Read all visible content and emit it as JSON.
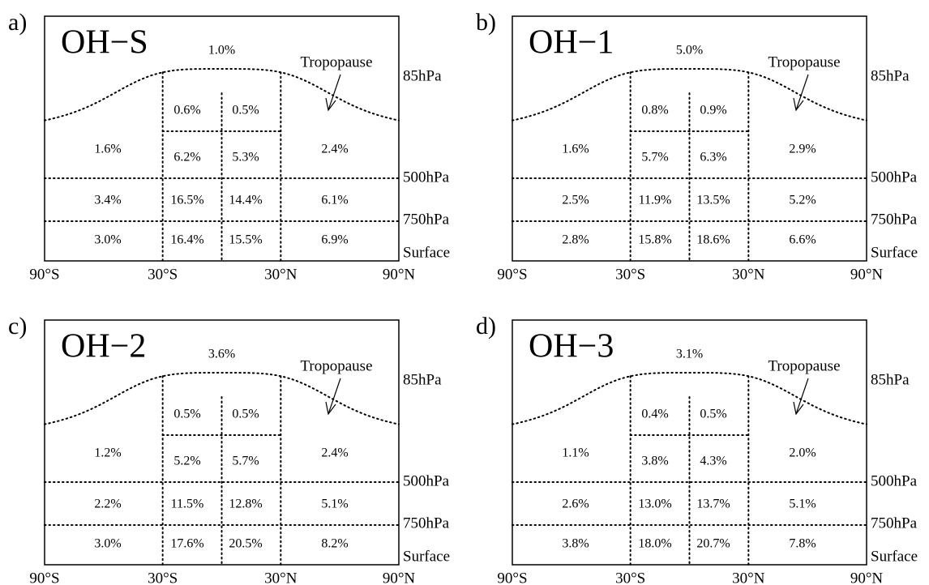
{
  "labels": {
    "levels": [
      "85hPa",
      "500hPa",
      "750hPa",
      "Surface"
    ],
    "latitudes": [
      "90°S",
      "30°S",
      "30°N",
      "90°N"
    ],
    "tropopause": "Tropopause"
  },
  "panels": [
    {
      "letter": "a)",
      "title": "OH−S",
      "peak": "1.0%",
      "cells": [
        [
          "0.6%",
          "0.5%"
        ],
        [
          "1.6%",
          "6.2%",
          "5.3%",
          "2.4%"
        ],
        [
          "3.4%",
          "16.5%",
          "14.4%",
          "6.1%"
        ],
        [
          "3.0%",
          "16.4%",
          "15.5%",
          "6.9%"
        ]
      ]
    },
    {
      "letter": "b)",
      "title": "OH−1",
      "peak": "5.0%",
      "cells": [
        [
          "0.8%",
          "0.9%"
        ],
        [
          "1.6%",
          "5.7%",
          "6.3%",
          "2.9%"
        ],
        [
          "2.5%",
          "11.9%",
          "13.5%",
          "5.2%"
        ],
        [
          "2.8%",
          "15.8%",
          "18.6%",
          "6.6%"
        ]
      ]
    },
    {
      "letter": "c)",
      "title": "OH−2",
      "peak": "3.6%",
      "cells": [
        [
          "0.5%",
          "0.5%"
        ],
        [
          "1.2%",
          "5.2%",
          "5.7%",
          "2.4%"
        ],
        [
          "2.2%",
          "11.5%",
          "12.8%",
          "5.1%"
        ],
        [
          "3.0%",
          "17.6%",
          "20.5%",
          "8.2%"
        ]
      ]
    },
    {
      "letter": "d)",
      "title": "OH−3",
      "peak": "3.1%",
      "cells": [
        [
          "0.4%",
          "0.5%"
        ],
        [
          "1.1%",
          "3.8%",
          "4.3%",
          "2.0%"
        ],
        [
          "2.6%",
          "13.0%",
          "13.7%",
          "5.1%"
        ],
        [
          "3.8%",
          "18.0%",
          "20.7%",
          "7.8%"
        ]
      ]
    }
  ]
}
